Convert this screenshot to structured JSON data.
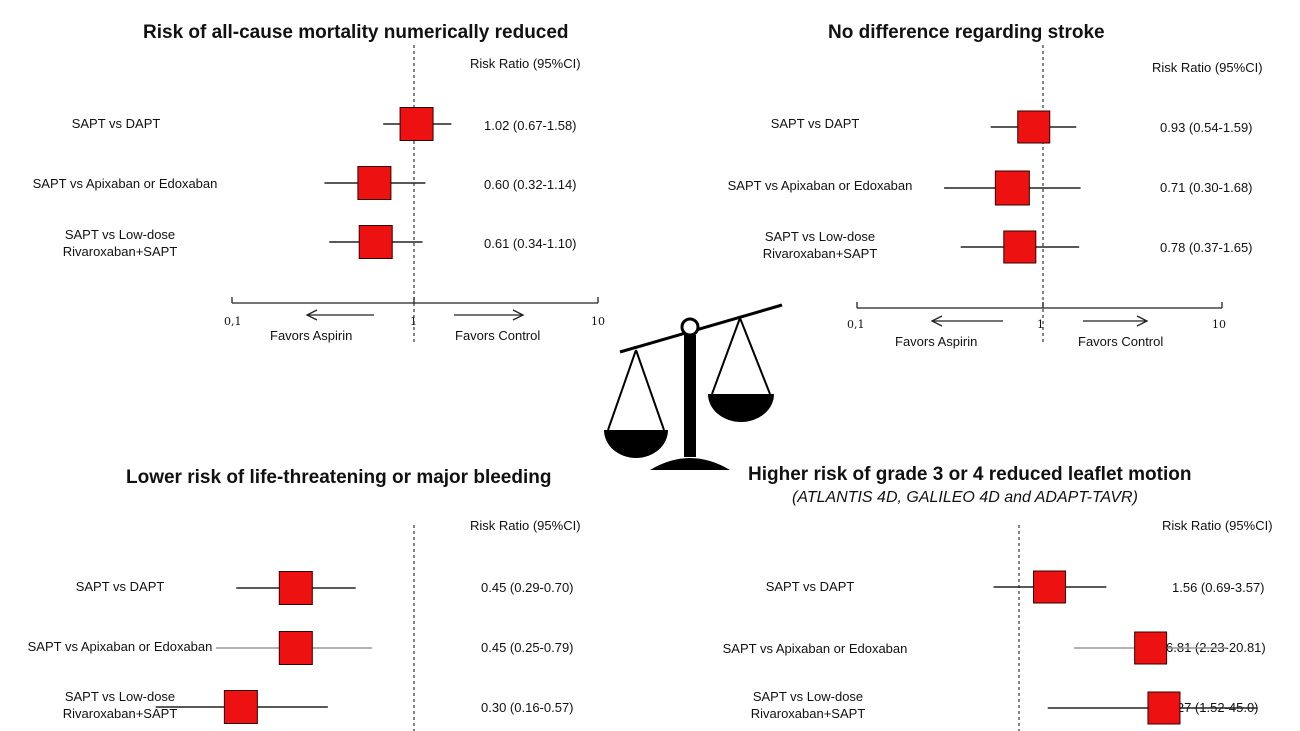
{
  "panels": [
    {
      "title": "Risk of all-cause mortality numerically reduced",
      "rr_header": "Risk Ratio (95%CI)",
      "rows": [
        {
          "label": "SAPT vs DAPT",
          "value": "1.02 (0.67-1.58)"
        },
        {
          "label": "SAPT vs Apixaban or Edoxaban",
          "value": "0.60 (0.32-1.14)"
        },
        {
          "label": "SAPT vs Low-dose Rivaroxaban+SAPT",
          "value": "0.61 (0.34-1.10)"
        }
      ],
      "axis": {
        "tick_min": "0,1",
        "tick_mid": "1",
        "tick_max": "10",
        "favors_left": "Favors Aspirin",
        "favors_right": "Favors Control"
      }
    },
    {
      "title": "No difference regarding stroke",
      "rr_header": "Risk Ratio (95%CI)",
      "rows": [
        {
          "label": "SAPT vs DAPT",
          "value": "0.93 (0.54-1.59)"
        },
        {
          "label": "SAPT vs Apixaban or Edoxaban",
          "value": "0.71 (0.30-1.68)"
        },
        {
          "label": "SAPT vs Low-dose Rivaroxaban+SAPT",
          "value": "0.78 (0.37-1.65)"
        }
      ],
      "axis": {
        "tick_min": "0,1",
        "tick_mid": "1",
        "tick_max": "10",
        "favors_left": "Favors Aspirin",
        "favors_right": "Favors Control"
      }
    },
    {
      "title": "Lower risk of life-threatening or major bleeding",
      "rr_header": "Risk Ratio (95%CI)",
      "rows": [
        {
          "label": "SAPT vs DAPT",
          "value": "0.45 (0.29-0.70)"
        },
        {
          "label": "SAPT vs Apixaban or Edoxaban",
          "value": "0.45 (0.25-0.79)"
        },
        {
          "label": "SAPT vs Low-dose Rivaroxaban+SAPT",
          "value": "0.30 (0.16-0.57)"
        }
      ]
    },
    {
      "title": "Higher risk of grade 3 or 4 reduced leaflet motion",
      "subtitle": "(ATLANTIS 4D, GALILEO 4D and ADAPT-TAVR)",
      "rr_header": "Risk Ratio (95%CI)",
      "rows": [
        {
          "label": "SAPT vs DAPT",
          "value": "1.56 (0.69-3.57)"
        },
        {
          "label": "SAPT vs Apixaban or Edoxaban",
          "value": "6.81 (2.23-20.81)"
        },
        {
          "label": "SAPT vs Low-dose Rivaroxaban+SAPT",
          "value": "8.27 (1.52-45.0)"
        }
      ]
    }
  ],
  "chart_data": [
    {
      "type": "forest",
      "title": "Risk of all-cause mortality numerically reduced",
      "x_scale": "log",
      "xlim": [
        0.1,
        10
      ],
      "reference_line": 1,
      "categories": [
        "SAPT vs DAPT",
        "SAPT vs Apixaban or Edoxaban",
        "SAPT vs Low-dose Rivaroxaban+SAPT"
      ],
      "estimates": [
        1.02,
        0.6,
        0.61
      ],
      "ci_low": [
        0.67,
        0.32,
        0.34
      ],
      "ci_high": [
        1.58,
        1.14,
        1.1
      ]
    },
    {
      "type": "forest",
      "title": "No difference regarding stroke",
      "x_scale": "log",
      "xlim": [
        0.1,
        10
      ],
      "reference_line": 1,
      "categories": [
        "SAPT vs DAPT",
        "SAPT vs Apixaban or Edoxaban",
        "SAPT vs Low-dose Rivaroxaban+SAPT"
      ],
      "estimates": [
        0.93,
        0.71,
        0.78
      ],
      "ci_low": [
        0.54,
        0.3,
        0.37
      ],
      "ci_high": [
        1.59,
        1.68,
        1.65
      ]
    },
    {
      "type": "forest",
      "title": "Lower risk of life-threatening or major bleeding",
      "x_scale": "log",
      "xlim": [
        0.1,
        10
      ],
      "reference_line": 1,
      "categories": [
        "SAPT vs DAPT",
        "SAPT vs Apixaban or Edoxaban",
        "SAPT vs Low-dose Rivaroxaban+SAPT"
      ],
      "estimates": [
        0.45,
        0.45,
        0.3
      ],
      "ci_low": [
        0.29,
        0.25,
        0.16
      ],
      "ci_high": [
        0.7,
        0.79,
        0.57
      ]
    },
    {
      "type": "forest",
      "title": "Higher risk of grade 3 or 4 reduced leaflet motion",
      "x_scale": "log",
      "xlim": [
        0.1,
        10
      ],
      "reference_line": 1,
      "categories": [
        "SAPT vs DAPT",
        "SAPT vs Apixaban or Edoxaban",
        "SAPT vs Low-dose Rivaroxaban+SAPT"
      ],
      "estimates": [
        1.56,
        6.81,
        8.27
      ],
      "ci_low": [
        0.69,
        2.23,
        1.52
      ],
      "ci_high": [
        3.57,
        20.81,
        45.0
      ]
    }
  ],
  "colors": {
    "marker_fill": "#ee1111",
    "marker_stroke": "#330000",
    "ci_line": "#222222",
    "ci_line_faint": "#999999"
  },
  "icons": {
    "center": "balance-scale-icon"
  }
}
